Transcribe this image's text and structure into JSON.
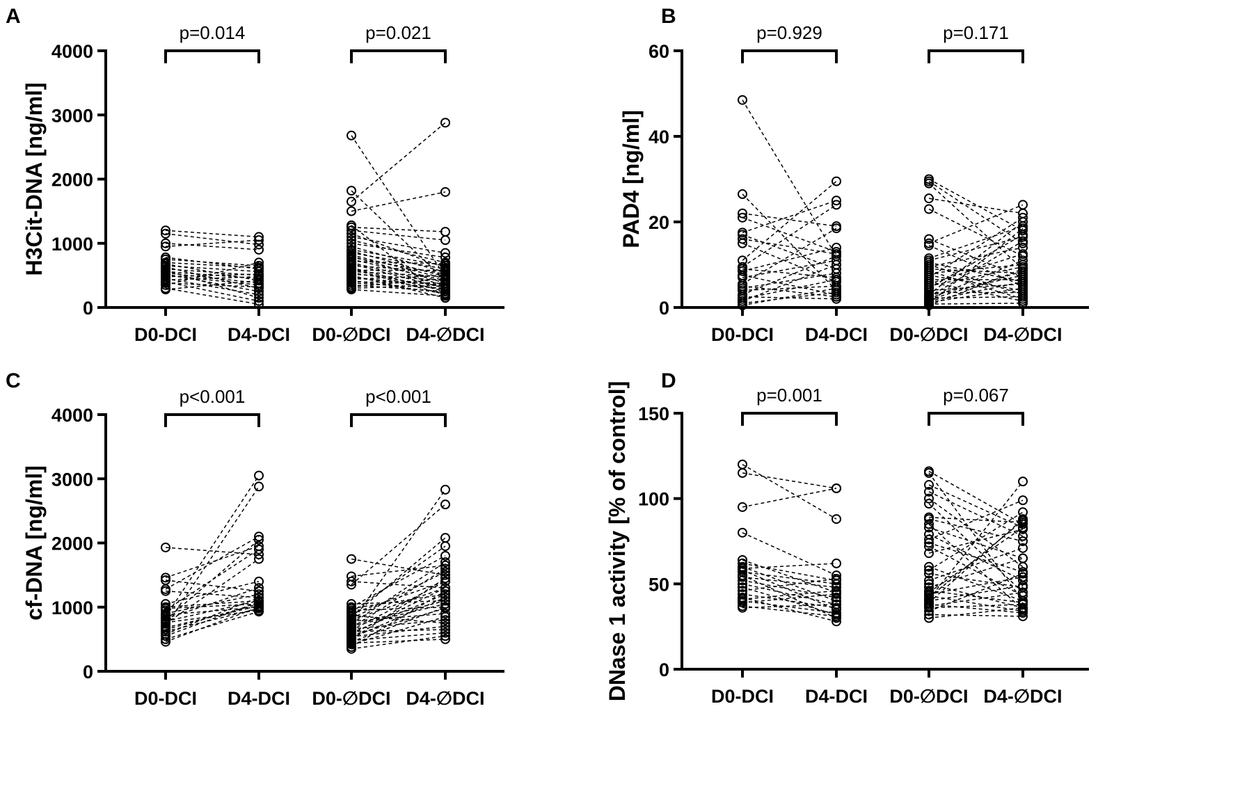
{
  "chart_data": [
    {
      "panel": "A",
      "type": "scatter",
      "ylabel": "H3Cit-DNA [ng/ml]",
      "ylim": [
        0,
        4000
      ],
      "yticks": [
        0,
        1000,
        2000,
        3000,
        4000
      ],
      "categories": [
        "D0-DCI",
        "D4-DCI",
        "D0-∅DCI",
        "D4-∅DCI"
      ],
      "comparisons": [
        {
          "from": 0,
          "to": 1,
          "label": "p=0.014"
        },
        {
          "from": 2,
          "to": 3,
          "label": "p=0.021"
        }
      ],
      "series": [
        {
          "name": "DCI",
          "pairs": [
            [
              1200,
              1100
            ],
            [
              1150,
              980
            ],
            [
              1000,
              900
            ],
            [
              950,
              1050
            ],
            [
              780,
              600
            ],
            [
              750,
              650
            ],
            [
              700,
              620
            ],
            [
              680,
              420
            ],
            [
              650,
              560
            ],
            [
              630,
              300
            ],
            [
              600,
              500
            ],
            [
              580,
              150
            ],
            [
              560,
              450
            ],
            [
              540,
              380
            ],
            [
              520,
              250
            ],
            [
              500,
              350
            ],
            [
              480,
              520
            ],
            [
              450,
              200
            ],
            [
              430,
              480
            ],
            [
              400,
              100
            ],
            [
              380,
              320
            ],
            [
              350,
              700
            ],
            [
              300,
              50
            ],
            [
              280,
              420
            ]
          ]
        },
        {
          "name": "no DCI",
          "pairs": [
            [
              2680,
              480
            ],
            [
              1820,
              420
            ],
            [
              1650,
              2880
            ],
            [
              1500,
              1800
            ],
            [
              1280,
              150
            ],
            [
              1250,
              1180
            ],
            [
              1200,
              1050
            ],
            [
              1150,
              620
            ],
            [
              1100,
              850
            ],
            [
              1050,
              700
            ],
            [
              1000,
              780
            ],
            [
              950,
              550
            ],
            [
              900,
              650
            ],
            [
              880,
              480
            ],
            [
              850,
              600
            ],
            [
              820,
              450
            ],
            [
              800,
              380
            ],
            [
              780,
              520
            ],
            [
              750,
              420
            ],
            [
              720,
              680
            ],
            [
              700,
              350
            ],
            [
              680,
              300
            ],
            [
              650,
              560
            ],
            [
              620,
              250
            ],
            [
              600,
              200
            ],
            [
              580,
              580
            ],
            [
              560,
              480
            ],
            [
              540,
              320
            ],
            [
              520,
              420
            ],
            [
              500,
              150
            ],
            [
              480,
              280
            ],
            [
              460,
              350
            ],
            [
              440,
              500
            ],
            [
              420,
              220
            ],
            [
              400,
              380
            ],
            [
              380,
              300
            ],
            [
              350,
              250
            ],
            [
              320,
              450
            ],
            [
              300,
              350
            ],
            [
              280,
              180
            ]
          ]
        }
      ]
    },
    {
      "panel": "B",
      "type": "scatter",
      "ylabel": "PAD4 [ng/ml]",
      "ylim": [
        0,
        60
      ],
      "yticks": [
        0,
        20,
        40,
        60
      ],
      "categories": [
        "D0-DCI",
        "D4-DCI",
        "D0-∅DCI",
        "D4-∅DCI"
      ],
      "comparisons": [
        {
          "from": 0,
          "to": 1,
          "label": "p=0.929"
        },
        {
          "from": 2,
          "to": 3,
          "label": "p=0.171"
        }
      ],
      "series": [
        {
          "name": "DCI",
          "pairs": [
            [
              48.5,
              12.0
            ],
            [
              26.5,
              4.0
            ],
            [
              22.0,
              19.0
            ],
            [
              21.0,
              13.0
            ],
            [
              17.5,
              25.0
            ],
            [
              17.0,
              9.0
            ],
            [
              16.0,
              12.5
            ],
            [
              15.0,
              6.0
            ],
            [
              11.0,
              29.5
            ],
            [
              9.5,
              24.0
            ],
            [
              9.0,
              7.0
            ],
            [
              8.5,
              14.0
            ],
            [
              7.5,
              3.0
            ],
            [
              7.0,
              11.0
            ],
            [
              5.5,
              18.5
            ],
            [
              5.0,
              2.5
            ],
            [
              4.5,
              8.0
            ],
            [
              4.0,
              5.0
            ],
            [
              3.0,
              12.0
            ],
            [
              2.5,
              2.0
            ],
            [
              2.0,
              6.5
            ],
            [
              1.5,
              10.0
            ],
            [
              1.0,
              3.5
            ],
            [
              0.5,
              4.5
            ]
          ]
        },
        {
          "name": "no DCI",
          "pairs": [
            [
              30.0,
              18.0
            ],
            [
              29.5,
              15.0
            ],
            [
              29.0,
              9.0
            ],
            [
              25.5,
              22.0
            ],
            [
              23.0,
              12.0
            ],
            [
              16.0,
              7.0
            ],
            [
              15.0,
              24.0
            ],
            [
              14.5,
              5.0
            ],
            [
              11.5,
              19.0
            ],
            [
              11.0,
              16.5
            ],
            [
              10.5,
              6.0
            ],
            [
              10.0,
              3.0
            ],
            [
              9.5,
              14.0
            ],
            [
              9.0,
              8.0
            ],
            [
              8.5,
              2.0
            ],
            [
              8.0,
              10.0
            ],
            [
              7.5,
              4.0
            ],
            [
              7.0,
              21.0
            ],
            [
              6.5,
              6.5
            ],
            [
              6.0,
              1.5
            ],
            [
              5.5,
              12.5
            ],
            [
              5.0,
              9.5
            ],
            [
              4.5,
              17.0
            ],
            [
              4.0,
              5.5
            ],
            [
              3.5,
              3.5
            ],
            [
              3.0,
              20.0
            ],
            [
              2.8,
              7.5
            ],
            [
              2.5,
              15.5
            ],
            [
              2.2,
              2.5
            ],
            [
              2.0,
              11.0
            ],
            [
              1.8,
              8.5
            ],
            [
              1.5,
              6.0
            ],
            [
              1.2,
              4.5
            ],
            [
              1.0,
              18.5
            ],
            [
              0.8,
              1.0
            ],
            [
              0.5,
              9.0
            ]
          ]
        }
      ]
    },
    {
      "panel": "C",
      "type": "scatter",
      "ylabel": "cf-DNA [ng/ml]",
      "ylim": [
        0,
        4000
      ],
      "yticks": [
        0,
        1000,
        2000,
        3000,
        4000
      ],
      "categories": [
        "D0-DCI",
        "D4-DCI",
        "D0-∅DCI",
        "D4-∅DCI"
      ],
      "comparisons": [
        {
          "from": 0,
          "to": 1,
          "label": "p<0.001"
        },
        {
          "from": 2,
          "to": 3,
          "label": "p<0.001"
        }
      ],
      "series": [
        {
          "name": "DCI",
          "pairs": [
            [
              1930,
              1820
            ],
            [
              1460,
              1950
            ],
            [
              1420,
              1250
            ],
            [
              1280,
              2100
            ],
            [
              1250,
              1150
            ],
            [
              1050,
              1400
            ],
            [
              1000,
              1100
            ],
            [
              980,
              1050
            ],
            [
              950,
              1900
            ],
            [
              900,
              1200
            ],
            [
              880,
              1000
            ],
            [
              850,
              3050
            ],
            [
              820,
              1300
            ],
            [
              800,
              2050
            ],
            [
              780,
              1100
            ],
            [
              760,
              950
            ],
            [
              740,
              1750
            ],
            [
              700,
              2880
            ],
            [
              680,
              1020
            ],
            [
              650,
              1050
            ],
            [
              620,
              980
            ],
            [
              580,
              1150
            ],
            [
              550,
              1080
            ],
            [
              500,
              930
            ],
            [
              460,
              1000
            ]
          ]
        },
        {
          "name": "no DCI",
          "pairs": [
            [
              1750,
              1500
            ],
            [
              1480,
              1650
            ],
            [
              1400,
              1300
            ],
            [
              1350,
              2600
            ],
            [
              1050,
              1100
            ],
            [
              1000,
              1800
            ],
            [
              980,
              1200
            ],
            [
              950,
              1000
            ],
            [
              920,
              1950
            ],
            [
              900,
              1400
            ],
            [
              870,
              750
            ],
            [
              850,
              2080
            ],
            [
              820,
              1550
            ],
            [
              800,
              1300
            ],
            [
              780,
              900
            ],
            [
              760,
              2830
            ],
            [
              740,
              1700
            ],
            [
              720,
              1100
            ],
            [
              700,
              1050
            ],
            [
              680,
              1600
            ],
            [
              660,
              800
            ],
            [
              640,
              1400
            ],
            [
              620,
              650
            ],
            [
              600,
              1200
            ],
            [
              580,
              1300
            ],
            [
              560,
              980
            ],
            [
              540,
              700
            ],
            [
              520,
              1150
            ],
            [
              500,
              1450
            ],
            [
              480,
              600
            ],
            [
              460,
              1000
            ],
            [
              440,
              500
            ],
            [
              420,
              850
            ],
            [
              380,
              1250
            ],
            [
              350,
              550
            ]
          ]
        }
      ]
    },
    {
      "panel": "D",
      "type": "scatter",
      "ylabel": "DNase 1 activity [% of control]",
      "ylim": [
        0,
        150
      ],
      "yticks": [
        0,
        50,
        100,
        150
      ],
      "categories": [
        "D0-DCI",
        "D4-DCI",
        "D0-∅DCI",
        "D4-∅DCI"
      ],
      "comparisons": [
        {
          "from": 0,
          "to": 1,
          "label": "p=0.001"
        },
        {
          "from": 2,
          "to": 3,
          "label": "p=0.067"
        }
      ],
      "series": [
        {
          "name": "DCI",
          "pairs": [
            [
              120,
              88
            ],
            [
              115,
              106
            ],
            [
              95,
              106
            ],
            [
              80,
              55
            ],
            [
              64,
              45
            ],
            [
              62,
              52
            ],
            [
              60,
              40
            ],
            [
              59,
              62
            ],
            [
              58,
              35
            ],
            [
              57,
              50
            ],
            [
              55,
              30
            ],
            [
              54,
              48
            ],
            [
              52,
              42
            ],
            [
              50,
              38
            ],
            [
              48,
              32
            ],
            [
              46,
              53
            ],
            [
              44,
              36
            ],
            [
              42,
              28
            ],
            [
              41,
              46
            ],
            [
              40,
              33
            ],
            [
              39,
              44
            ],
            [
              37,
              31
            ],
            [
              36,
              38
            ]
          ]
        },
        {
          "name": "no DCI",
          "pairs": [
            [
              116,
              85
            ],
            [
              115,
              40
            ],
            [
              108,
              83
            ],
            [
              104,
              78
            ],
            [
              100,
              60
            ],
            [
              97,
              45
            ],
            [
              89,
              86
            ],
            [
              88,
              75
            ],
            [
              85,
              35
            ],
            [
              83,
              65
            ],
            [
              79,
              52
            ],
            [
              76,
              99
            ],
            [
              74,
              57
            ],
            [
              72,
              43
            ],
            [
              68,
              82
            ],
            [
              60,
              40
            ],
            [
              58,
              92
            ],
            [
              56,
              48
            ],
            [
              52,
              71
            ],
            [
              50,
              36
            ],
            [
              48,
              65
            ],
            [
              46,
              39
            ],
            [
              45,
              83
            ],
            [
              44,
              54
            ],
            [
              43,
              34
            ],
            [
              42,
              87
            ],
            [
              41,
              110
            ],
            [
              40,
              49
            ],
            [
              39,
              88
            ],
            [
              38,
              33
            ],
            [
              37,
              45
            ],
            [
              36,
              38
            ],
            [
              34,
              56
            ],
            [
              32,
              31
            ],
            [
              30,
              36
            ]
          ]
        }
      ]
    }
  ]
}
